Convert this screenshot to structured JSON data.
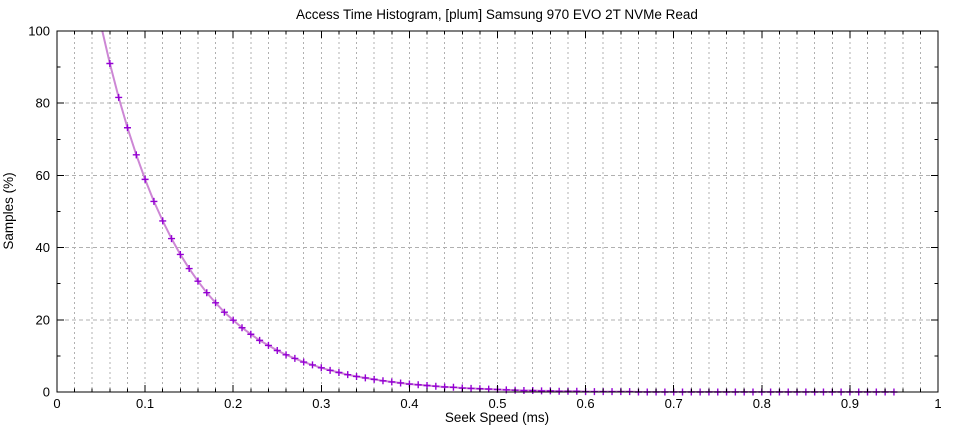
{
  "page": {
    "title": "Access Time Histogram, [plum] Samsung 970 EVO 2T NVMe Read"
  },
  "colors": {
    "background": "#ffffff",
    "axis": "#000000",
    "grid": "#b0b0b0",
    "line": "#cd87d5",
    "marker": "#9400d3",
    "text": "#000000"
  },
  "chart_data": {
    "type": "line",
    "title": "Access Time Histogram, [plum] Samsung 970 EVO 2T NVMe Read",
    "xlabel": "Seek Speed (ms)",
    "ylabel": "Samples (%)",
    "xlim": [
      0,
      1
    ],
    "ylim": [
      0,
      100
    ],
    "x_major_ticks": [
      0,
      0.1,
      0.2,
      0.3,
      0.4,
      0.5,
      0.6,
      0.7,
      0.8,
      0.9,
      1
    ],
    "x_tick_labels": [
      "0",
      "0.1",
      "0.2",
      "0.3",
      "0.4",
      "0.5",
      "0.6",
      "0.7",
      "0.8",
      "0.9",
      "1"
    ],
    "x_minor_tick_step": 0.02,
    "y_major_ticks": [
      0,
      20,
      40,
      60,
      80,
      100
    ],
    "y_tick_labels": [
      "0",
      "20",
      "40",
      "60",
      "80",
      "100"
    ],
    "y_minor_tick_step": 10,
    "grid": {
      "vertical": "dotted lines at every 0.02 x position",
      "horizontal": "dashed lines at every 20 y position",
      "color": "#b0b0b0"
    },
    "legend": "none",
    "series": [
      {
        "name": "Samsung 970 EVO 2T NVMe Read",
        "line_color": "#cd87d5",
        "marker": "plus",
        "marker_color": "#9400d3",
        "points": [
          [
            0.05,
            101.5
          ],
          [
            0.06,
            91.0
          ],
          [
            0.07,
            81.6
          ],
          [
            0.08,
            73.2
          ],
          [
            0.09,
            65.7
          ],
          [
            0.1,
            58.9
          ],
          [
            0.11,
            52.8
          ],
          [
            0.12,
            47.4
          ],
          [
            0.13,
            42.5
          ],
          [
            0.14,
            38.1
          ],
          [
            0.15,
            34.2
          ],
          [
            0.16,
            30.7
          ],
          [
            0.17,
            27.5
          ],
          [
            0.18,
            24.7
          ],
          [
            0.19,
            22.1
          ],
          [
            0.2,
            19.9
          ],
          [
            0.21,
            17.8
          ],
          [
            0.22,
            16.0
          ],
          [
            0.23,
            14.3
          ],
          [
            0.24,
            12.9
          ],
          [
            0.25,
            11.5
          ],
          [
            0.26,
            10.3
          ],
          [
            0.27,
            9.3
          ],
          [
            0.28,
            8.3
          ],
          [
            0.29,
            7.5
          ],
          [
            0.3,
            6.7
          ],
          [
            0.31,
            6.0
          ],
          [
            0.32,
            5.4
          ],
          [
            0.33,
            4.8
          ],
          [
            0.34,
            4.3
          ],
          [
            0.35,
            3.9
          ],
          [
            0.36,
            3.5
          ],
          [
            0.37,
            3.1
          ],
          [
            0.38,
            2.8
          ],
          [
            0.39,
            2.5
          ],
          [
            0.4,
            2.2
          ],
          [
            0.41,
            2.0
          ],
          [
            0.42,
            1.8
          ],
          [
            0.43,
            1.6
          ],
          [
            0.44,
            1.4
          ],
          [
            0.45,
            1.3
          ],
          [
            0.46,
            1.1
          ],
          [
            0.47,
            1.0
          ],
          [
            0.48,
            0.9
          ],
          [
            0.49,
            0.8
          ],
          [
            0.5,
            0.7
          ],
          [
            0.51,
            0.6
          ],
          [
            0.52,
            0.5
          ],
          [
            0.53,
            0.4
          ],
          [
            0.54,
            0.4
          ],
          [
            0.55,
            0.3
          ],
          [
            0.56,
            0.3
          ],
          [
            0.57,
            0.2
          ],
          [
            0.58,
            0.2
          ],
          [
            0.59,
            0.2
          ],
          [
            0.6,
            0.1
          ],
          [
            0.61,
            0.1
          ],
          [
            0.62,
            0.1
          ],
          [
            0.63,
            0.1
          ],
          [
            0.64,
            0.1
          ],
          [
            0.65,
            0.1
          ],
          [
            0.66,
            0.0
          ],
          [
            0.67,
            0.0
          ],
          [
            0.68,
            0.0
          ],
          [
            0.69,
            0.0
          ],
          [
            0.7,
            0.0
          ],
          [
            0.71,
            0.0
          ],
          [
            0.72,
            0.0
          ],
          [
            0.73,
            0.0
          ],
          [
            0.74,
            0.0
          ],
          [
            0.75,
            0.0
          ],
          [
            0.76,
            0.0
          ],
          [
            0.77,
            0.0
          ],
          [
            0.78,
            0.0
          ],
          [
            0.79,
            0.0
          ],
          [
            0.8,
            0.0
          ],
          [
            0.81,
            0.0
          ],
          [
            0.82,
            0.0
          ],
          [
            0.83,
            0.0
          ],
          [
            0.84,
            0.0
          ],
          [
            0.85,
            0.0
          ],
          [
            0.86,
            0.0
          ],
          [
            0.87,
            0.0
          ],
          [
            0.88,
            0.0
          ],
          [
            0.89,
            0.0
          ],
          [
            0.9,
            0.0
          ],
          [
            0.91,
            0.0
          ],
          [
            0.92,
            0.0
          ],
          [
            0.93,
            0.0
          ],
          [
            0.94,
            0.0
          ],
          [
            0.95,
            0.0
          ]
        ]
      }
    ]
  }
}
